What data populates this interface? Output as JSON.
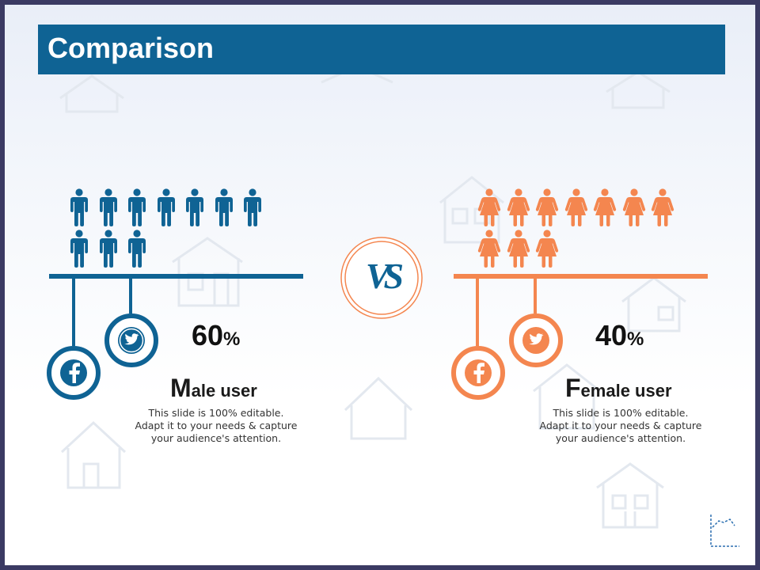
{
  "title": "Comparison",
  "vs_label": "VS",
  "colors": {
    "male": "#0f6394",
    "female": "#f4864f",
    "title_bar": "#0f6394"
  },
  "male": {
    "percent": "60",
    "percent_symbol": "%",
    "title_cap": "M",
    "title_rest": "ale user",
    "description_lines": [
      "This slide is 100% editable.",
      "Adapt it to your needs & capture",
      "your audience's attention."
    ],
    "icon_count": 10,
    "social_icons": [
      "facebook-icon",
      "twitter-icon"
    ]
  },
  "female": {
    "percent": "40",
    "percent_symbol": "%",
    "title_cap": "F",
    "title_rest": "emale user",
    "description_lines": [
      "This slide is 100% editable.",
      "Adapt it to your needs & capture",
      "your audience's attention."
    ],
    "icon_count": 10,
    "social_icons": [
      "facebook-icon",
      "twitter-icon"
    ]
  }
}
